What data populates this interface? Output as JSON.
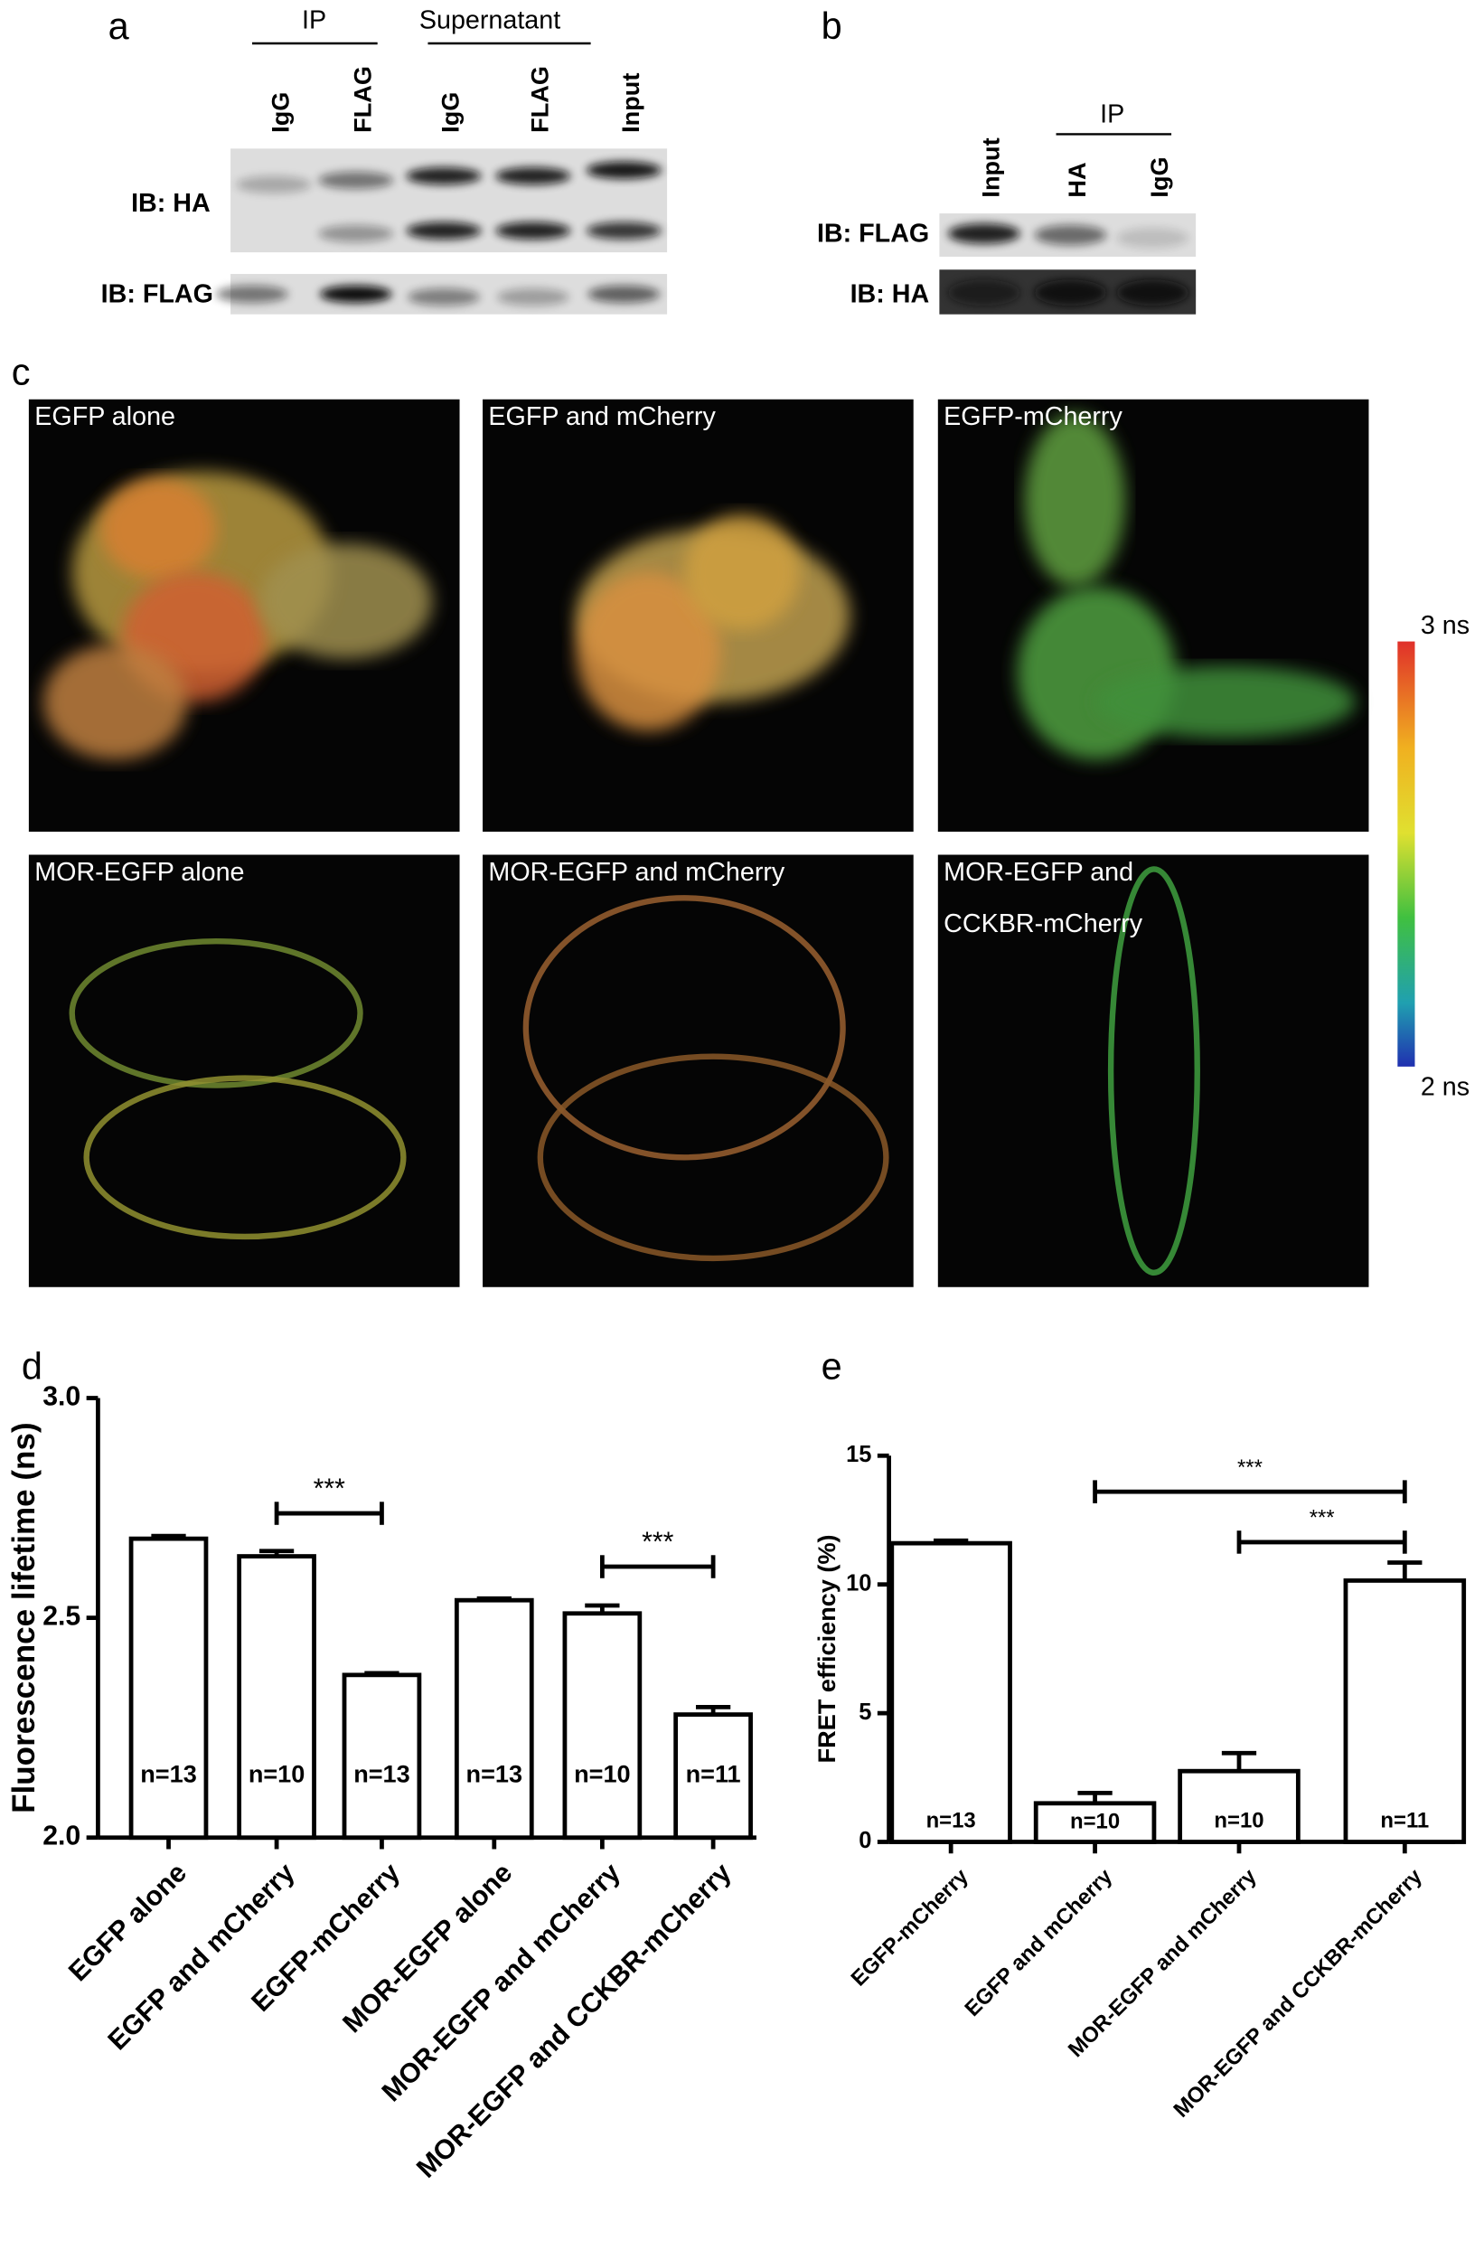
{
  "panels": {
    "a": {
      "label": "a",
      "groups": [
        "IP",
        "Supernatant"
      ],
      "lanes": [
        "IgG",
        "FLAG",
        "IgG",
        "FLAG",
        "Input"
      ],
      "rows": [
        "IB: HA",
        "IB: FLAG"
      ]
    },
    "b": {
      "label": "b",
      "group": "IP",
      "lanes": [
        "Input",
        "HA",
        "IgG"
      ],
      "rows": [
        "IB: FLAG",
        "IB: HA"
      ]
    },
    "c": {
      "label": "c",
      "images": [
        [
          "EGFP alone"
        ],
        [
          "EGFP and mCherry"
        ],
        [
          "EGFP-mCherry"
        ],
        [
          "MOR-EGFP alone"
        ],
        [
          "MOR-EGFP and mCherry"
        ],
        [
          "MOR-EGFP and",
          "CCKBR-mCherry"
        ]
      ],
      "colorbar": {
        "max_label": "3 ns",
        "min_label": "2 ns"
      }
    }
  },
  "chart_data": [
    {
      "type": "bar",
      "panel_label": "d",
      "ylabel": "Fluorescence lifetime (ns)",
      "categories": [
        "EGFP alone",
        "EGFP and mCherry",
        "EGFP-mCherry",
        "MOR-EGFP alone",
        "MOR-EGFP and mCherry",
        "MOR-EGFP and CCKBR-mCherry"
      ],
      "values": [
        2.68,
        2.64,
        2.37,
        2.54,
        2.51,
        2.28
      ],
      "errors": [
        0.006,
        0.012,
        0.004,
        0.004,
        0.018,
        0.017
      ],
      "n_labels": [
        "n=13",
        "n=10",
        "n=13",
        "n=13",
        "n=10",
        "n=11"
      ],
      "ylim": [
        2,
        3
      ],
      "yticks": [
        {
          "value": 2,
          "label": "2.0"
        },
        2.5,
        {
          "value": 3,
          "label": "3.0"
        }
      ],
      "significance": [
        {
          "label": "***",
          "between": [
            1,
            2
          ]
        },
        {
          "label": "***",
          "between": [
            4,
            5
          ]
        }
      ]
    },
    {
      "type": "bar",
      "panel_label": "e",
      "ylabel": "FRET efficiency (%)",
      "categories": [
        "EGFP-mCherry",
        "EGFP and mCherry",
        "MOR-EGFP and mCherry",
        "MOR-EGFP and CCKBR-mCherry"
      ],
      "values": [
        11.6,
        1.5,
        2.75,
        10.15
      ],
      "errors": [
        0.1,
        0.4,
        0.7,
        0.7
      ],
      "n_labels": [
        "n=13",
        "n=10",
        "n=10",
        "n=11"
      ],
      "ylim": [
        0,
        15
      ],
      "yticks": [
        0,
        5,
        10,
        15
      ],
      "significance": [
        {
          "label": "***",
          "between": [
            1,
            3
          ]
        },
        {
          "label": "***",
          "between": [
            2,
            3
          ]
        }
      ]
    }
  ]
}
